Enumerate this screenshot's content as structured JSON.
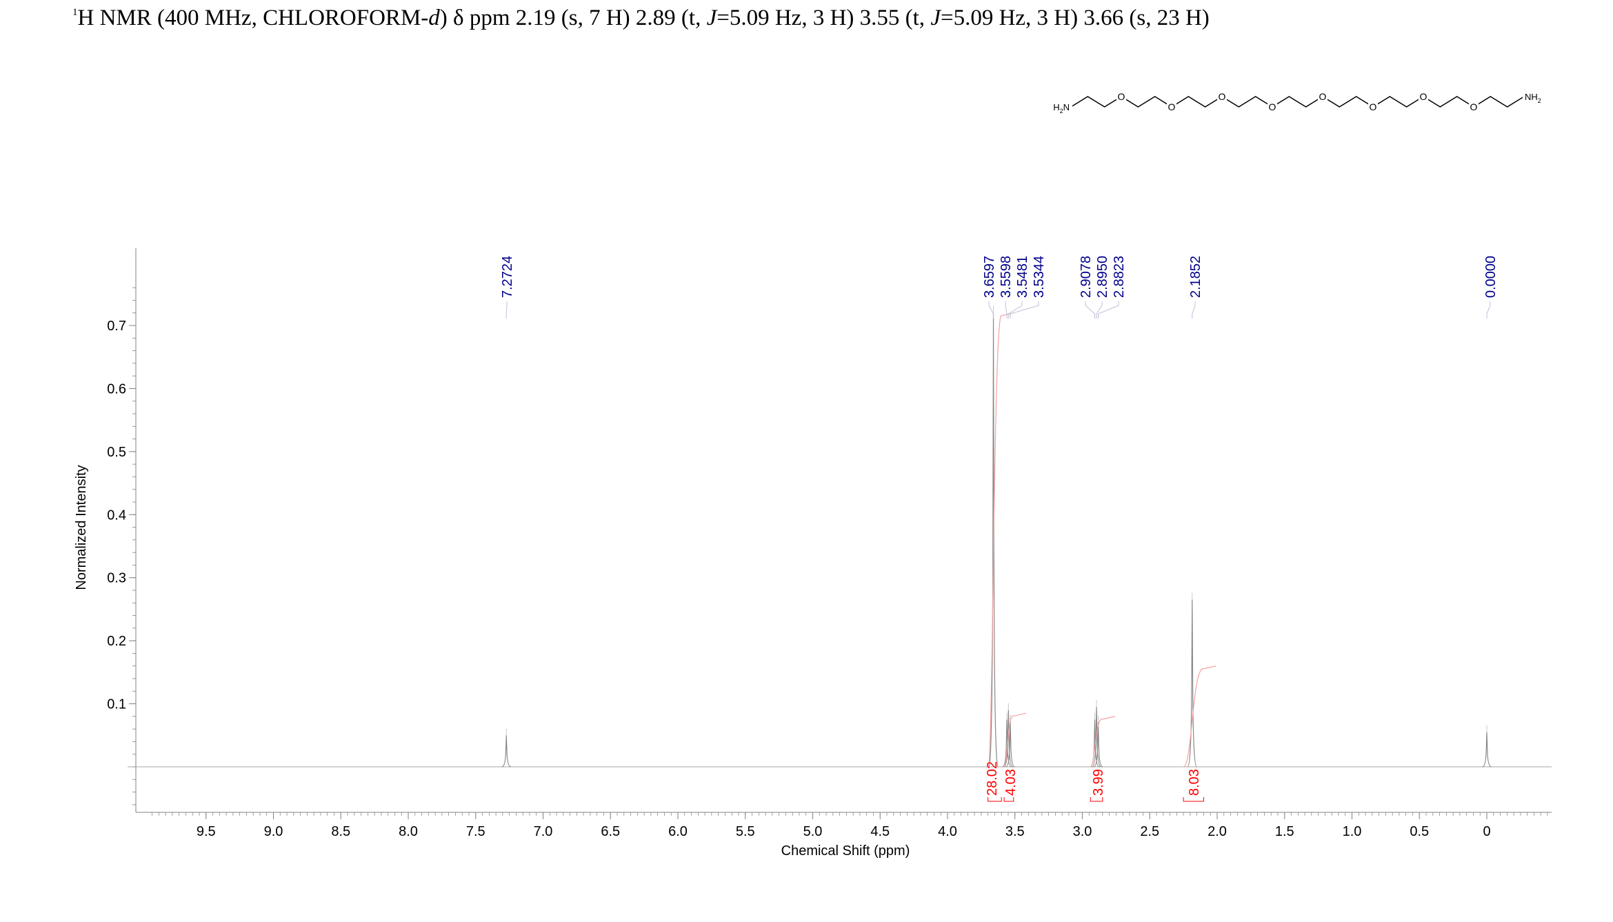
{
  "header": {
    "isotope": "1",
    "nucleus_prefix": "H NMR (400 MHz, CHLOROFORM-",
    "solvent_suffix": "d",
    "close_paren": ")",
    "delta": "δ",
    "peaks": [
      {
        "text": "ppm 2.19 (s, 7 H) 2.89 (t, ",
        "j": "J",
        "rest": ""
      },
      {
        "text": "=5.09 Hz, 3 H) 3.55 (t, ",
        "j": "J",
        "rest": ""
      },
      {
        "text": "=5.09 Hz, 3 H) 3.66 (s, 23 H)",
        "j": "",
        "rest": ""
      }
    ]
  },
  "molecule": {
    "left_group_main": "H",
    "left_group_sub": "2",
    "left_group_tail": "N",
    "oxygen_label": "O",
    "right_group_main": "NH",
    "right_group_sub": "2"
  },
  "chart_data": {
    "type": "line",
    "xlabel": "Chemical Shift (ppm)",
    "ylabel": "Normalized Intensity",
    "xlim": [
      10.0,
      -0.5
    ],
    "ylim": [
      -0.075,
      0.82
    ],
    "x_reversed": true,
    "x_ticks": [
      9.5,
      9.0,
      8.5,
      8.0,
      7.5,
      7.0,
      6.5,
      6.0,
      5.5,
      5.0,
      4.5,
      4.0,
      3.5,
      3.0,
      2.5,
      2.0,
      1.5,
      1.0,
      0.5,
      0
    ],
    "x_tick_labels": [
      "9.5",
      "9.0",
      "8.5",
      "8.0",
      "7.5",
      "7.0",
      "6.5",
      "6.0",
      "5.5",
      "5.0",
      "4.5",
      "4.0",
      "3.5",
      "3.0",
      "2.5",
      "2.0",
      "1.5",
      "1.0",
      "0.5",
      "0"
    ],
    "y_ticks": [
      0.1,
      0.2,
      0.3,
      0.4,
      0.5,
      0.6,
      0.7
    ],
    "y_tick_labels": [
      "0.1",
      "0.2",
      "0.3",
      "0.4",
      "0.5",
      "0.6",
      "0.7"
    ],
    "peaks": [
      {
        "shift": 7.2724,
        "height": 0.05,
        "width": 0.004
      },
      {
        "shift": 3.6597,
        "height": 0.72,
        "width": 0.005
      },
      {
        "shift": 3.5598,
        "height": 0.075,
        "width": 0.003
      },
      {
        "shift": 3.5481,
        "height": 0.09,
        "width": 0.003
      },
      {
        "shift": 3.5344,
        "height": 0.072,
        "width": 0.003
      },
      {
        "shift": 2.9078,
        "height": 0.075,
        "width": 0.003
      },
      {
        "shift": 2.895,
        "height": 0.095,
        "width": 0.003
      },
      {
        "shift": 2.8823,
        "height": 0.07,
        "width": 0.003
      },
      {
        "shift": 2.1852,
        "height": 0.265,
        "width": 0.005
      },
      {
        "shift": 0.0,
        "height": 0.055,
        "width": 0.003
      }
    ],
    "peak_labels": [
      {
        "label": "7.2724",
        "shift": 7.2724
      },
      {
        "label": "3.6597",
        "shift": 3.6597
      },
      {
        "label": "3.5598",
        "shift": 3.5598
      },
      {
        "label": "3.5481",
        "shift": 3.5481
      },
      {
        "label": "3.5344",
        "shift": 3.5344
      },
      {
        "label": "2.9078",
        "shift": 2.9078
      },
      {
        "label": "2.8950",
        "shift": 2.895
      },
      {
        "label": "2.8823",
        "shift": 2.8823
      },
      {
        "label": "2.1852",
        "shift": 2.1852
      },
      {
        "label": "0.0000",
        "shift": 0.0
      }
    ],
    "integrals": [
      {
        "value": "28.02",
        "from": 3.7,
        "to": 3.6
      },
      {
        "value": "4.03",
        "from": 3.58,
        "to": 3.51
      },
      {
        "value": "3.99",
        "from": 2.94,
        "to": 2.85
      },
      {
        "value": "8.03",
        "from": 2.25,
        "to": 2.1
      }
    ],
    "colors": {
      "spectrum": "#a8a8a8",
      "peak_label": "#00008b",
      "integral": "#ff0000",
      "integral_curve": "#f5a0a0",
      "axis": "#808080",
      "text": "#000000"
    }
  }
}
